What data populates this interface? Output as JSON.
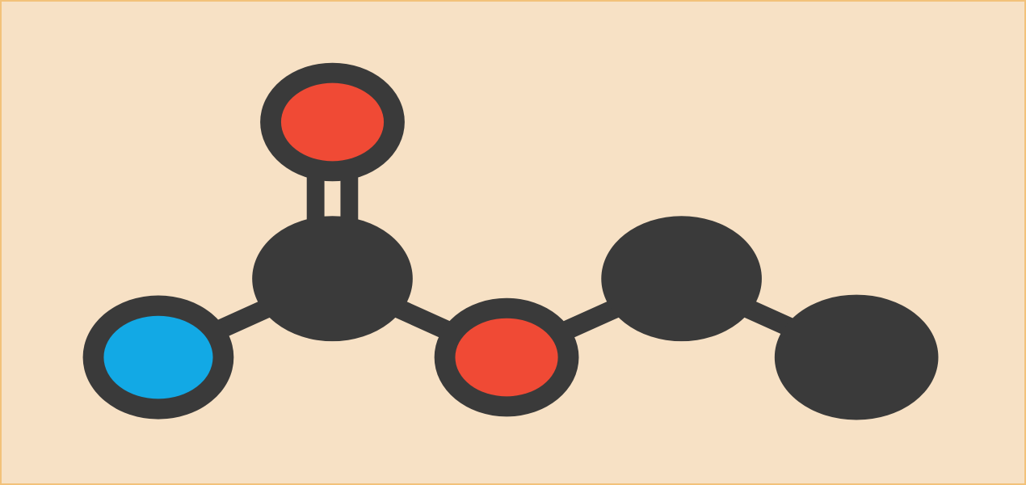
{
  "diagram": {
    "type": "molecule-ball-and-stick",
    "colors": {
      "background": "#f7e1c5",
      "frame": "#f2c27a",
      "bond": "#3a3a3a",
      "atom_outline": "#3a3a3a",
      "oxygen": "#f04a35",
      "nitrogen": "#12a9e5",
      "carbon": "#3a3a3a"
    },
    "atoms": [
      {
        "id": "o-carbonyl",
        "element": "O",
        "color": "oxygen"
      },
      {
        "id": "c-carbonyl",
        "element": "C",
        "color": "carbon"
      },
      {
        "id": "n-amine",
        "element": "N",
        "color": "nitrogen"
      },
      {
        "id": "o-ester",
        "element": "O",
        "color": "oxygen"
      },
      {
        "id": "c-methylene",
        "element": "C",
        "color": "carbon"
      },
      {
        "id": "c-methyl",
        "element": "C",
        "color": "carbon"
      }
    ],
    "bonds": [
      {
        "from": "c-carbonyl",
        "to": "o-carbonyl",
        "order": 2
      },
      {
        "from": "c-carbonyl",
        "to": "n-amine",
        "order": 1
      },
      {
        "from": "c-carbonyl",
        "to": "o-ester",
        "order": 1
      },
      {
        "from": "o-ester",
        "to": "c-methylene",
        "order": 1
      },
      {
        "from": "c-methylene",
        "to": "c-methyl",
        "order": 1
      }
    ]
  }
}
